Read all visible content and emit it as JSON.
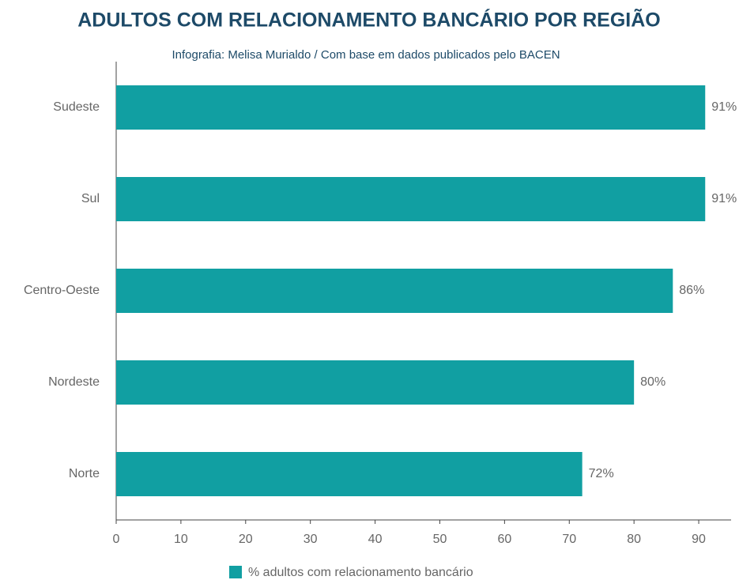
{
  "chart_data": {
    "type": "bar",
    "title": "ADULTOS COM RELACIONAMENTO BANCÁRIO POR REGIÃO",
    "subtitle": "Infografia: Melisa Murialdo / Com base em dados publicados pelo BACEN",
    "categories": [
      "Sudeste",
      "Sul",
      "Centro-Oeste",
      "Nordeste",
      "Norte"
    ],
    "series": [
      {
        "name": "% adultos com relacionamento bancário",
        "color": "#119fa2",
        "values": [
          91,
          91,
          86,
          80,
          72
        ],
        "value_labels": [
          "91%",
          "91%",
          "86%",
          "80%",
          "72%"
        ]
      }
    ],
    "xlim": [
      0,
      95
    ],
    "xticks": [
      0,
      10,
      20,
      30,
      40,
      50,
      60,
      70,
      80,
      90
    ]
  }
}
